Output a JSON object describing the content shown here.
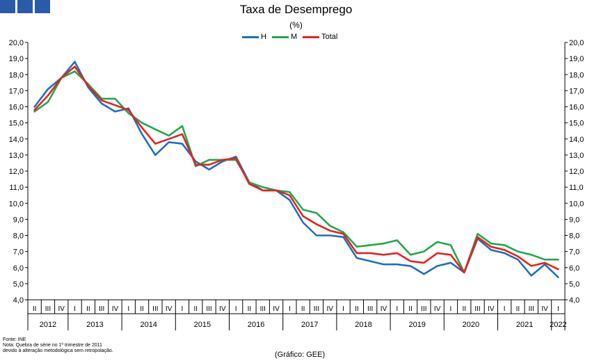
{
  "chart_data": {
    "type": "line",
    "title": "Taxa de Desemprego",
    "subtitle": "(%)",
    "ylim": [
      4,
      20
    ],
    "yticks": [
      "4,0",
      "5,0",
      "6,0",
      "7,0",
      "8,0",
      "9,0",
      "10,0",
      "11,0",
      "12,0",
      "13,0",
      "14,0",
      "15,0",
      "16,0",
      "17,0",
      "18,0",
      "19,0",
      "20,0"
    ],
    "grid": false,
    "legend_position": "top-center",
    "quarter_labels": [
      "II",
      "III",
      "IV",
      "I",
      "II",
      "III",
      "IV",
      "I",
      "II",
      "III",
      "IV",
      "I",
      "II",
      "III",
      "IV",
      "I",
      "II",
      "III",
      "IV",
      "I",
      "II",
      "III",
      "IV",
      "I",
      "II",
      "III",
      "IV",
      "I",
      "II",
      "III",
      "IV",
      "I",
      "II",
      "III",
      "IV",
      "I",
      "II",
      "III",
      "IV",
      "I"
    ],
    "years": [
      {
        "label": "2012",
        "start": 0,
        "end": 2
      },
      {
        "label": "2013",
        "start": 3,
        "end": 6
      },
      {
        "label": "2014",
        "start": 7,
        "end": 10
      },
      {
        "label": "2015",
        "start": 11,
        "end": 14
      },
      {
        "label": "2016",
        "start": 15,
        "end": 18
      },
      {
        "label": "2017",
        "start": 19,
        "end": 22
      },
      {
        "label": "2018",
        "start": 23,
        "end": 26
      },
      {
        "label": "2019",
        "start": 27,
        "end": 30
      },
      {
        "label": "2020",
        "start": 31,
        "end": 34
      },
      {
        "label": "2021",
        "start": 35,
        "end": 38
      },
      {
        "label": "2022",
        "start": 39,
        "end": 39
      }
    ],
    "series": [
      {
        "name": "H",
        "color": "#1f6fba",
        "values": [
          16.0,
          17.1,
          17.8,
          18.8,
          17.2,
          16.2,
          15.7,
          15.9,
          14.3,
          13.0,
          13.8,
          13.7,
          12.6,
          12.1,
          12.6,
          12.9,
          11.3,
          10.8,
          10.8,
          10.2,
          8.8,
          8.0,
          8.0,
          7.9,
          6.6,
          6.4,
          6.2,
          6.2,
          6.1,
          5.6,
          6.1,
          6.3,
          5.7,
          7.8,
          7.1,
          6.9,
          6.5,
          5.5,
          6.2,
          5.4
        ]
      },
      {
        "name": "M",
        "color": "#1fa84a",
        "values": [
          15.7,
          16.3,
          17.8,
          18.2,
          17.4,
          16.5,
          16.5,
          15.6,
          15.0,
          14.6,
          14.2,
          14.8,
          12.3,
          12.7,
          12.7,
          12.7,
          11.3,
          11.0,
          10.8,
          10.7,
          9.6,
          9.4,
          8.6,
          8.2,
          7.3,
          7.4,
          7.5,
          7.7,
          6.8,
          7.0,
          7.6,
          7.4,
          5.7,
          8.1,
          7.5,
          7.4,
          7.0,
          6.8,
          6.5,
          6.5
        ]
      },
      {
        "name": "Total",
        "color": "#e8211f",
        "values": [
          15.8,
          16.7,
          17.8,
          18.5,
          17.3,
          16.4,
          16.1,
          15.8,
          14.7,
          13.7,
          14.0,
          14.3,
          12.4,
          12.4,
          12.7,
          12.8,
          11.2,
          10.8,
          10.8,
          10.5,
          9.2,
          8.7,
          8.3,
          8.1,
          6.9,
          6.9,
          6.8,
          6.9,
          6.4,
          6.3,
          6.9,
          6.8,
          5.7,
          7.9,
          7.3,
          7.1,
          6.7,
          6.1,
          6.3,
          5.9
        ]
      }
    ]
  },
  "footer": {
    "source_line1": "Fonte: INE",
    "source_line2": "Nota: Quebra de série no 1º trimestre de 2011",
    "source_line3": "devido à alteração metodológica sem retropolação.",
    "credit": "(Gráfico: GEE)"
  }
}
